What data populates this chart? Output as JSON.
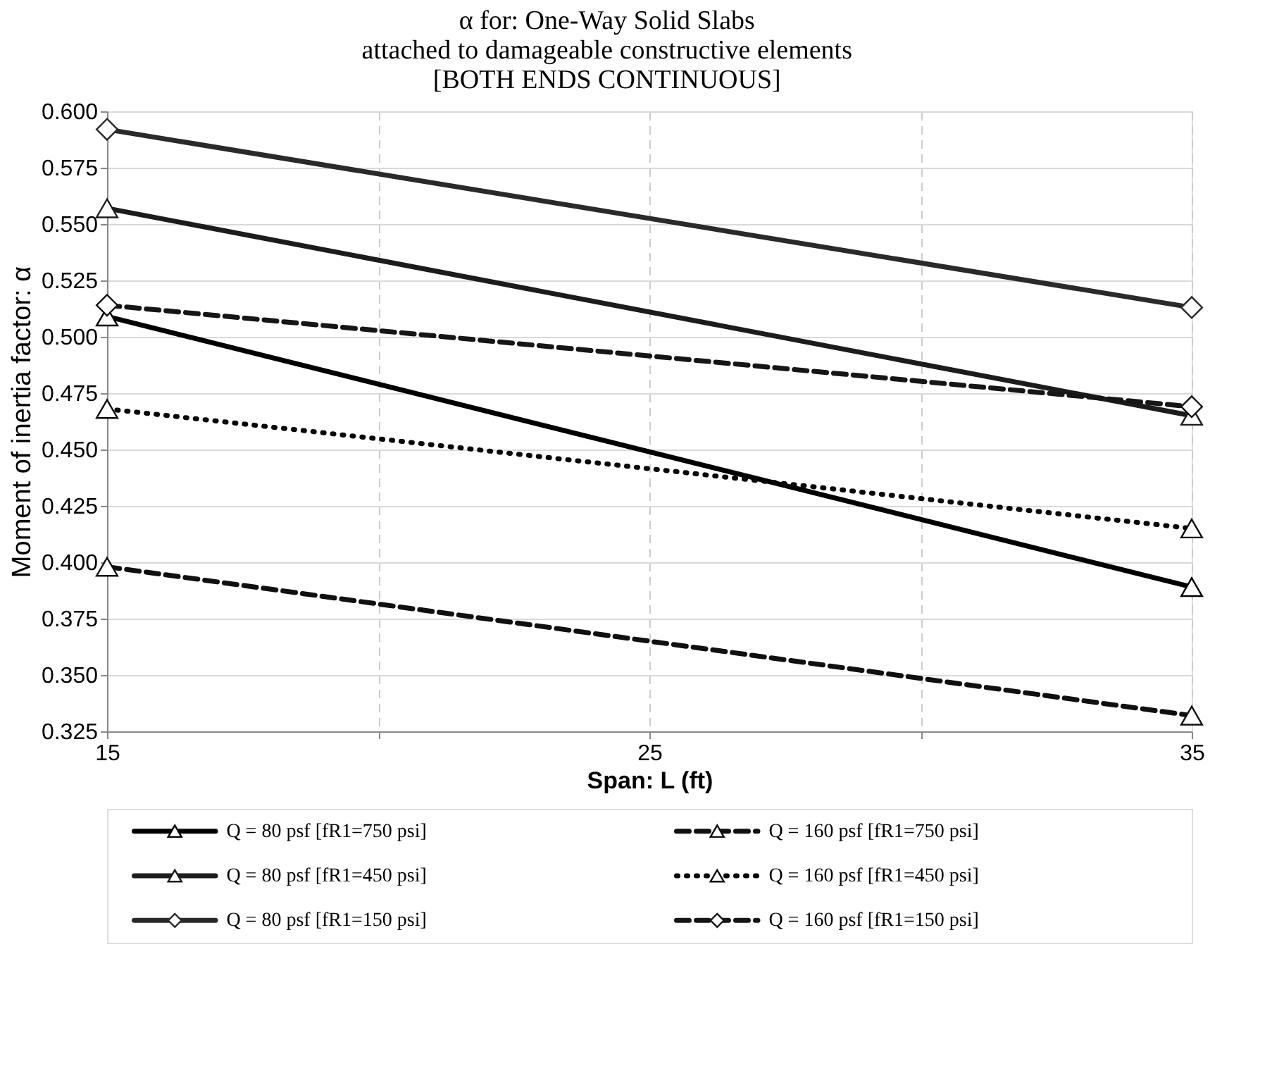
{
  "chart_data": {
    "type": "line",
    "title": "α for: One-Way Solid Slabs\nattached to damageable constructive elements\n[BOTH ENDS CONTINUOUS]",
    "xlabel": "Span: L (ft)",
    "ylabel": "Moment of inertia factor: α",
    "x": [
      15,
      35
    ],
    "series": [
      {
        "name": "Q = 80 psf  [fR1=750 psi]",
        "color": "#000000",
        "line_style": "solid",
        "marker": "triangle",
        "values": [
          0.509,
          0.389
        ]
      },
      {
        "name": "Q = 160 psf  [fR1=750 psi]",
        "color": "#101010",
        "line_style": "dashed",
        "marker": "triangle",
        "values": [
          0.398,
          0.332
        ]
      },
      {
        "name": "Q = 80 psf [fR1=450 psi]",
        "color": "#1c1c1c",
        "line_style": "solid",
        "marker": "triangle",
        "values": [
          0.557,
          0.465
        ]
      },
      {
        "name": "Q = 160 psf [fR1=450 psi]",
        "color": "#080808",
        "line_style": "dotted",
        "marker": "triangle",
        "values": [
          0.468,
          0.415
        ]
      },
      {
        "name": "Q = 80 psf [fR1=150 psi]",
        "color": "#2a2a2a",
        "line_style": "solid",
        "marker": "diamond",
        "values": [
          0.592,
          0.513
        ]
      },
      {
        "name": "Q = 160 psf [fR1=150 psi]",
        "color": "#161616",
        "line_style": "dashed",
        "marker": "diamond",
        "values": [
          0.514,
          0.469
        ]
      }
    ],
    "xlim": [
      15,
      35
    ],
    "xticks": [
      15,
      {
        "value": 20,
        "label": null
      },
      25,
      {
        "value": 30,
        "label": null
      },
      35
    ],
    "ylim": [
      0.325,
      0.6
    ],
    "yticks": [
      {
        "value": 0.325,
        "label": "0.325"
      },
      {
        "value": 0.35,
        "label": "0.350"
      },
      {
        "value": 0.375,
        "label": "0.375"
      },
      {
        "value": 0.4,
        "label": "0.400"
      },
      {
        "value": 0.425,
        "label": "0.425"
      },
      {
        "value": 0.45,
        "label": "0.450"
      },
      {
        "value": 0.475,
        "label": "0.475"
      },
      {
        "value": 0.5,
        "label": "0.500"
      },
      {
        "value": 0.525,
        "label": "0.525"
      },
      {
        "value": 0.55,
        "label": "0.550"
      },
      {
        "value": 0.575,
        "label": "0.575"
      },
      {
        "value": 0.6,
        "label": "0.600"
      }
    ],
    "grid": true,
    "legend": "bottom"
  }
}
